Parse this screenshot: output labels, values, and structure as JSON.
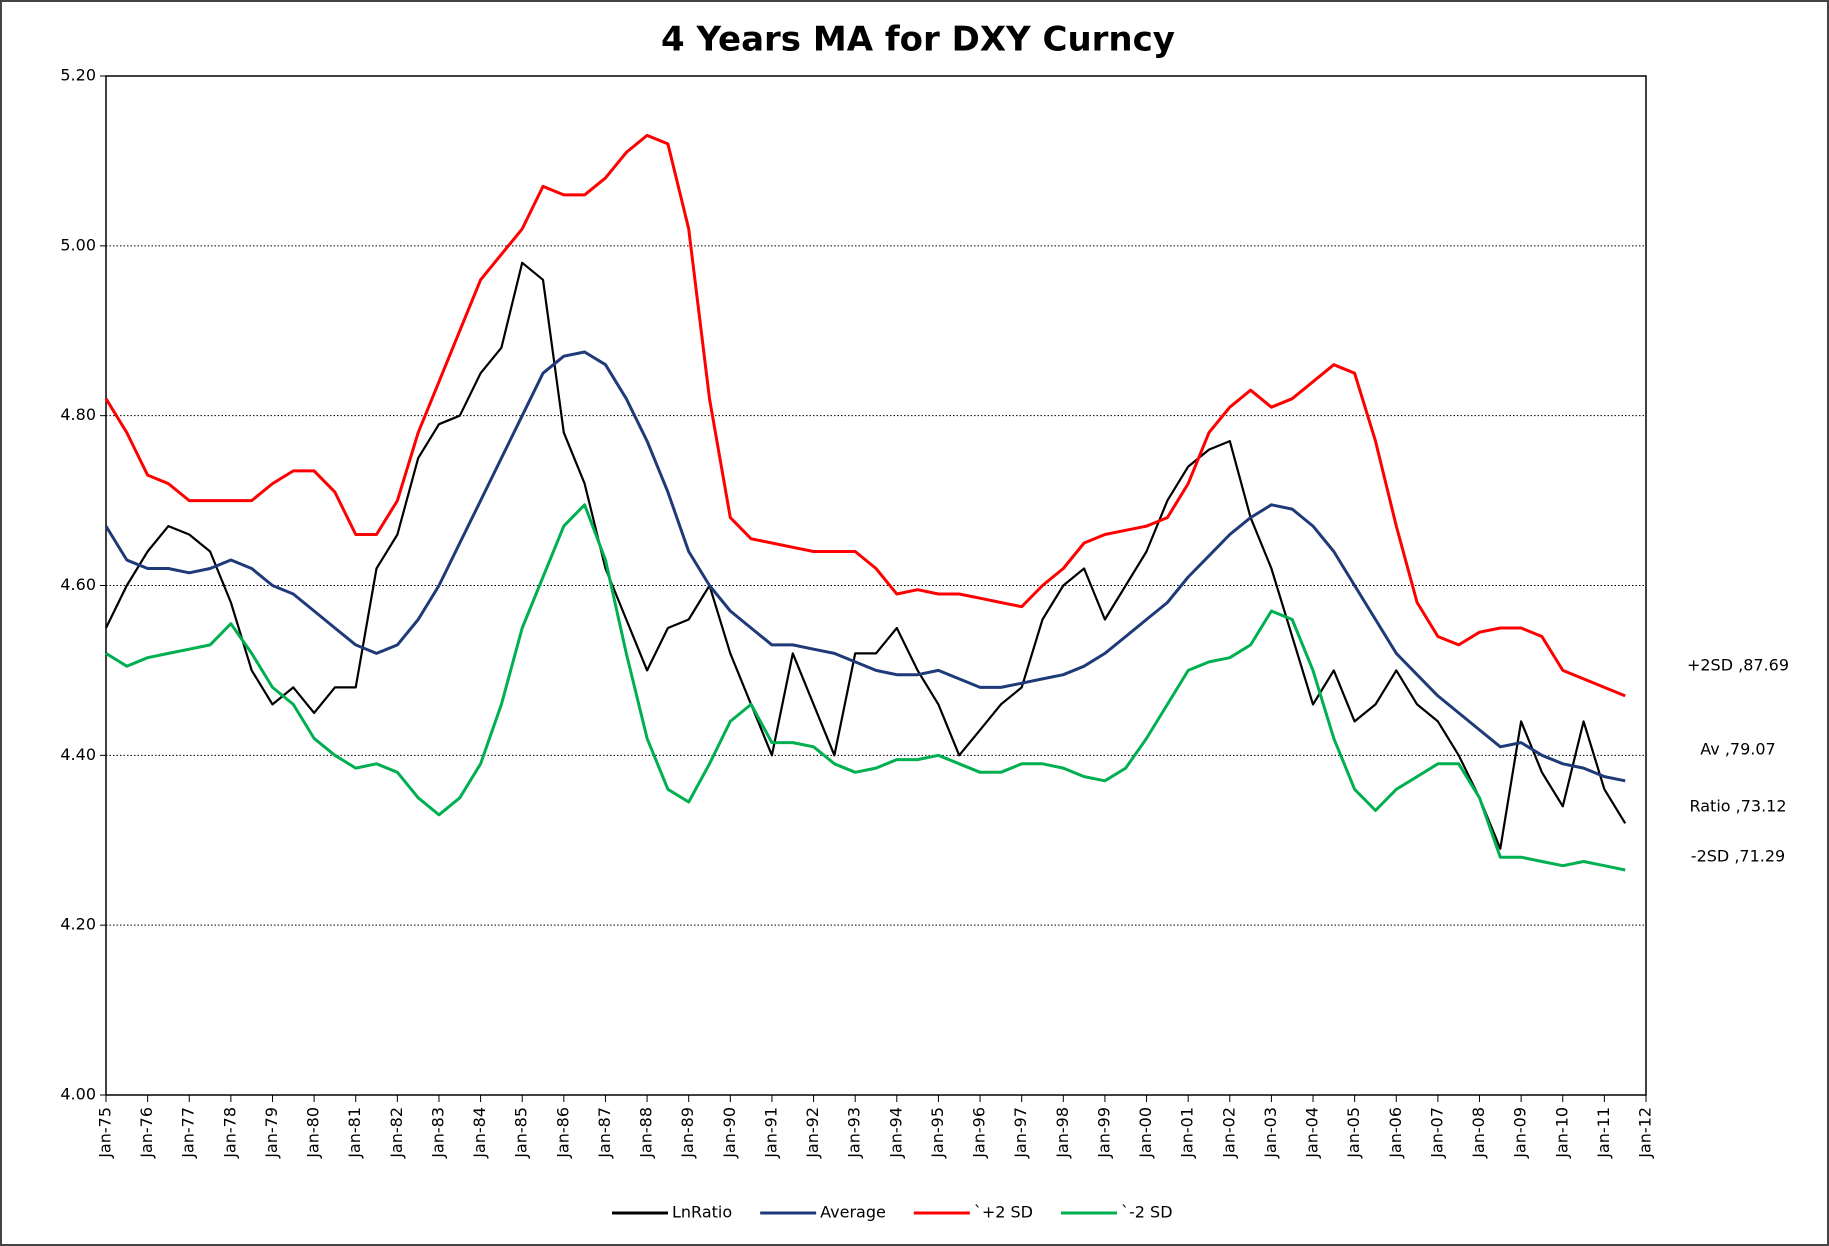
{
  "chart_data": {
    "type": "line",
    "title": "4 Years MA for DXY Curncy",
    "x": [
      "Jan-75",
      "Jul-75",
      "Jan-76",
      "Jul-76",
      "Jan-77",
      "Jul-77",
      "Jan-78",
      "Jul-78",
      "Jan-79",
      "Jul-79",
      "Jan-80",
      "Jul-80",
      "Jan-81",
      "Jul-81",
      "Jan-82",
      "Jul-82",
      "Jan-83",
      "Jul-83",
      "Jan-84",
      "Jul-84",
      "Jan-85",
      "Jul-85",
      "Jan-86",
      "Jul-86",
      "Jan-87",
      "Jul-87",
      "Jan-88",
      "Jul-88",
      "Jan-89",
      "Jul-89",
      "Jan-90",
      "Jul-90",
      "Jan-91",
      "Jul-91",
      "Jan-92",
      "Jul-92",
      "Jan-93",
      "Jul-93",
      "Jan-94",
      "Jul-94",
      "Jan-95",
      "Jul-95",
      "Jan-96",
      "Jul-96",
      "Jan-97",
      "Jul-97",
      "Jan-98",
      "Jul-98",
      "Jan-99",
      "Jul-99",
      "Jan-00",
      "Jul-00",
      "Jan-01",
      "Jul-01",
      "Jan-02",
      "Jul-02",
      "Jan-03",
      "Jul-03",
      "Jan-04",
      "Jul-04",
      "Jan-05",
      "Jul-05",
      "Jan-06",
      "Jul-06",
      "Jan-07",
      "Jul-07",
      "Jan-08",
      "Jul-08",
      "Jan-09",
      "Jul-09",
      "Jan-10",
      "Jul-10",
      "Jan-11",
      "Jul-11"
    ],
    "series": [
      {
        "name": "LnRatio",
        "color": "#000000",
        "values": [
          4.55,
          4.6,
          4.64,
          4.67,
          4.66,
          4.64,
          4.58,
          4.5,
          4.46,
          4.48,
          4.45,
          4.48,
          4.48,
          4.62,
          4.66,
          4.75,
          4.79,
          4.8,
          4.85,
          4.88,
          4.98,
          4.96,
          4.78,
          4.72,
          4.62,
          4.56,
          4.5,
          4.55,
          4.56,
          4.6,
          4.52,
          4.46,
          4.4,
          4.52,
          4.46,
          4.4,
          4.52,
          4.52,
          4.55,
          4.5,
          4.46,
          4.4,
          4.43,
          4.46,
          4.48,
          4.56,
          4.6,
          4.62,
          4.56,
          4.6,
          4.64,
          4.7,
          4.74,
          4.76,
          4.77,
          4.68,
          4.62,
          4.54,
          4.46,
          4.5,
          4.44,
          4.46,
          4.5,
          4.46,
          4.44,
          4.4,
          4.35,
          4.29,
          4.44,
          4.38,
          4.34,
          4.44,
          4.36,
          4.32
        ]
      },
      {
        "name": "Average",
        "color": "#1f3a78",
        "values": [
          4.67,
          4.63,
          4.62,
          4.62,
          4.615,
          4.62,
          4.63,
          4.62,
          4.6,
          4.59,
          4.57,
          4.55,
          4.53,
          4.52,
          4.53,
          4.56,
          4.6,
          4.65,
          4.7,
          4.75,
          4.8,
          4.85,
          4.87,
          4.875,
          4.86,
          4.82,
          4.77,
          4.71,
          4.64,
          4.6,
          4.57,
          4.55,
          4.53,
          4.53,
          4.525,
          4.52,
          4.51,
          4.5,
          4.495,
          4.495,
          4.5,
          4.49,
          4.48,
          4.48,
          4.485,
          4.49,
          4.495,
          4.505,
          4.52,
          4.54,
          4.56,
          4.58,
          4.61,
          4.635,
          4.66,
          4.68,
          4.695,
          4.69,
          4.67,
          4.64,
          4.6,
          4.56,
          4.52,
          4.495,
          4.47,
          4.45,
          4.43,
          4.41,
          4.415,
          4.4,
          4.39,
          4.385,
          4.375,
          4.37
        ]
      },
      {
        "name": "`+2 SD",
        "color": "#ff0000",
        "values": [
          4.82,
          4.78,
          4.73,
          4.72,
          4.7,
          4.7,
          4.7,
          4.7,
          4.72,
          4.735,
          4.735,
          4.71,
          4.66,
          4.66,
          4.7,
          4.78,
          4.84,
          4.9,
          4.96,
          4.99,
          5.02,
          5.07,
          5.06,
          5.06,
          5.08,
          5.11,
          5.13,
          5.12,
          5.02,
          4.82,
          4.68,
          4.655,
          4.65,
          4.645,
          4.64,
          4.64,
          4.64,
          4.62,
          4.59,
          4.595,
          4.59,
          4.59,
          4.585,
          4.58,
          4.575,
          4.6,
          4.62,
          4.65,
          4.66,
          4.665,
          4.67,
          4.68,
          4.72,
          4.78,
          4.81,
          4.83,
          4.81,
          4.82,
          4.84,
          4.86,
          4.85,
          4.77,
          4.67,
          4.58,
          4.54,
          4.53,
          4.545,
          4.55,
          4.55,
          4.54,
          4.5,
          4.49,
          4.48,
          4.47
        ]
      },
      {
        "name": "`-2 SD",
        "color": "#00b050",
        "values": [
          4.52,
          4.505,
          4.515,
          4.52,
          4.525,
          4.53,
          4.555,
          4.52,
          4.48,
          4.46,
          4.42,
          4.4,
          4.385,
          4.39,
          4.38,
          4.35,
          4.33,
          4.35,
          4.39,
          4.46,
          4.55,
          4.61,
          4.67,
          4.695,
          4.63,
          4.52,
          4.42,
          4.36,
          4.345,
          4.39,
          4.44,
          4.46,
          4.415,
          4.415,
          4.41,
          4.39,
          4.38,
          4.385,
          4.395,
          4.395,
          4.4,
          4.39,
          4.38,
          4.38,
          4.39,
          4.39,
          4.385,
          4.375,
          4.37,
          4.385,
          4.42,
          4.46,
          4.5,
          4.51,
          4.515,
          4.53,
          4.57,
          4.56,
          4.5,
          4.42,
          4.36,
          4.335,
          4.36,
          4.375,
          4.39,
          4.39,
          4.35,
          4.28,
          4.28,
          4.275,
          4.27,
          4.275,
          4.27,
          4.265
        ]
      }
    ],
    "ylim": [
      4.0,
      5.2
    ],
    "yticks": [
      {
        "value": 4.0,
        "label": "4.00"
      },
      {
        "value": 4.2,
        "label": "4.20"
      },
      {
        "value": 4.4,
        "label": "4.40"
      },
      {
        "value": 4.6,
        "label": "4.60"
      },
      {
        "value": 4.8,
        "label": "4.80"
      },
      {
        "value": 5.0,
        "label": "5.00"
      },
      {
        "value": 5.2,
        "label": "5.20"
      }
    ],
    "xticks": [
      "Jan-75",
      "Jan-76",
      "Jan-77",
      "Jan-78",
      "Jan-79",
      "Jan-80",
      "Jan-81",
      "Jan-82",
      "Jan-83",
      "Jan-84",
      "Jan-85",
      "Jan-86",
      "Jan-87",
      "Jan-88",
      "Jan-89",
      "Jan-90",
      "Jan-91",
      "Jan-92",
      "Jan-93",
      "Jan-94",
      "Jan-95",
      "Jan-96",
      "Jan-97",
      "Jan-98",
      "Jan-99",
      "Jan-00",
      "Jan-01",
      "Jan-02",
      "Jan-03",
      "Jan-04",
      "Jan-05",
      "Jan-06",
      "Jan-07",
      "Jan-08",
      "Jan-09",
      "Jan-10",
      "Jan-11",
      "Jan-12"
    ],
    "grid": true,
    "legend": "bottom",
    "annotations": [
      "+2SD ,87.69",
      "Av ,79.07",
      "Ratio ,73.12",
      "-2SD ,71.29"
    ]
  }
}
